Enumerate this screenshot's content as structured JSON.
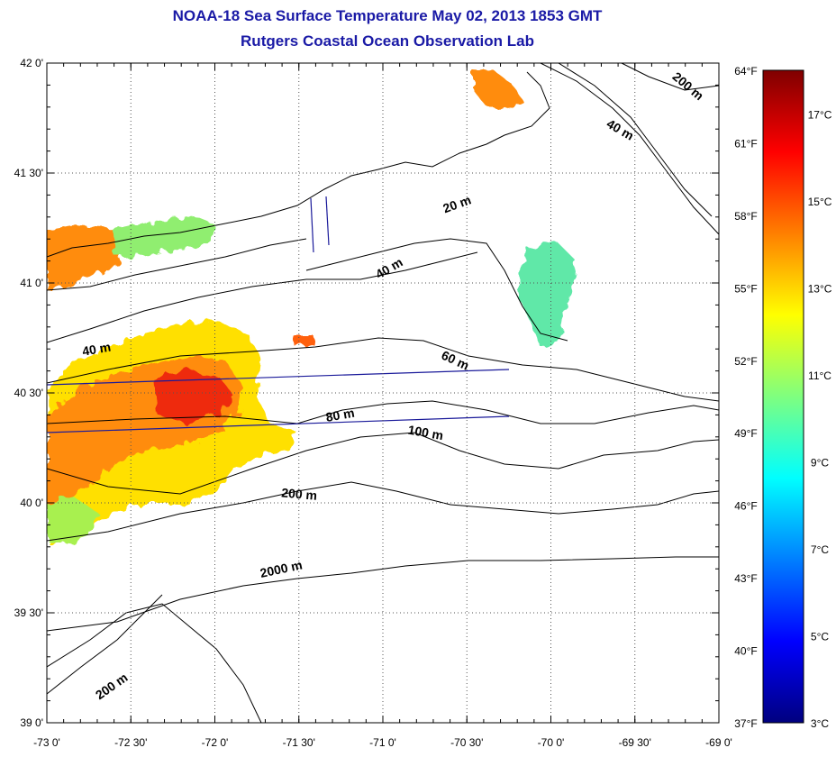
{
  "header": {
    "title": "NOAA-18 Sea Surface Temperature May 02, 2013 1853 GMT",
    "subtitle": "Rutgers Coastal Ocean Observation Lab"
  },
  "map": {
    "longitude_labels": [
      "-73 0'",
      "-72 30'",
      "-72 0'",
      "-71 30'",
      "-71 0'",
      "-70 30'",
      "-70 0'",
      "-69 30'",
      "-69 0'"
    ],
    "latitude_labels": [
      "42 0'",
      "41 30'",
      "41 0'",
      "40 30'",
      "40 0'",
      "39 30'",
      "39 0'"
    ],
    "longitude_range": [
      -73,
      -69
    ],
    "latitude_range": [
      39,
      42
    ],
    "grid": "dotted",
    "isobath_labels": [
      {
        "text": "20 m",
        "lon": -70.55,
        "lat": 41.34
      },
      {
        "text": "40 m",
        "lon": -70.95,
        "lat": 41.05
      },
      {
        "text": "40 m",
        "lon": -69.6,
        "lat": 41.68
      },
      {
        "text": "40 m",
        "lon": -72.7,
        "lat": 40.68
      },
      {
        "text": "60 m",
        "lon": -70.58,
        "lat": 40.63
      },
      {
        "text": "80 m",
        "lon": -71.25,
        "lat": 40.38
      },
      {
        "text": "100 m",
        "lon": -70.75,
        "lat": 40.3
      },
      {
        "text": "200 m",
        "lon": -71.5,
        "lat": 40.02
      },
      {
        "text": "200 m",
        "lon": -69.2,
        "lat": 41.88
      },
      {
        "text": "2000 m",
        "lon": -71.6,
        "lat": 39.68
      },
      {
        "text": "200 m",
        "lon": -72.6,
        "lat": 39.15
      }
    ]
  },
  "colorbar": {
    "fahrenheit_labels": [
      "64°F",
      "61°F",
      "58°F",
      "55°F",
      "52°F",
      "49°F",
      "46°F",
      "43°F",
      "40°F",
      "37°F"
    ],
    "celsius_labels": [
      "17°C",
      "15°C",
      "13°C",
      "11°C",
      "9°C",
      "7°C",
      "5°C",
      "3°C"
    ],
    "fahrenheit_range": [
      37,
      64
    ],
    "celsius_range": [
      3,
      18
    ],
    "colors": [
      "#00007f",
      "#0000ff",
      "#007fff",
      "#00ffff",
      "#7fff7f",
      "#ffff00",
      "#ff7f00",
      "#ff0000",
      "#7f0000"
    ]
  }
}
